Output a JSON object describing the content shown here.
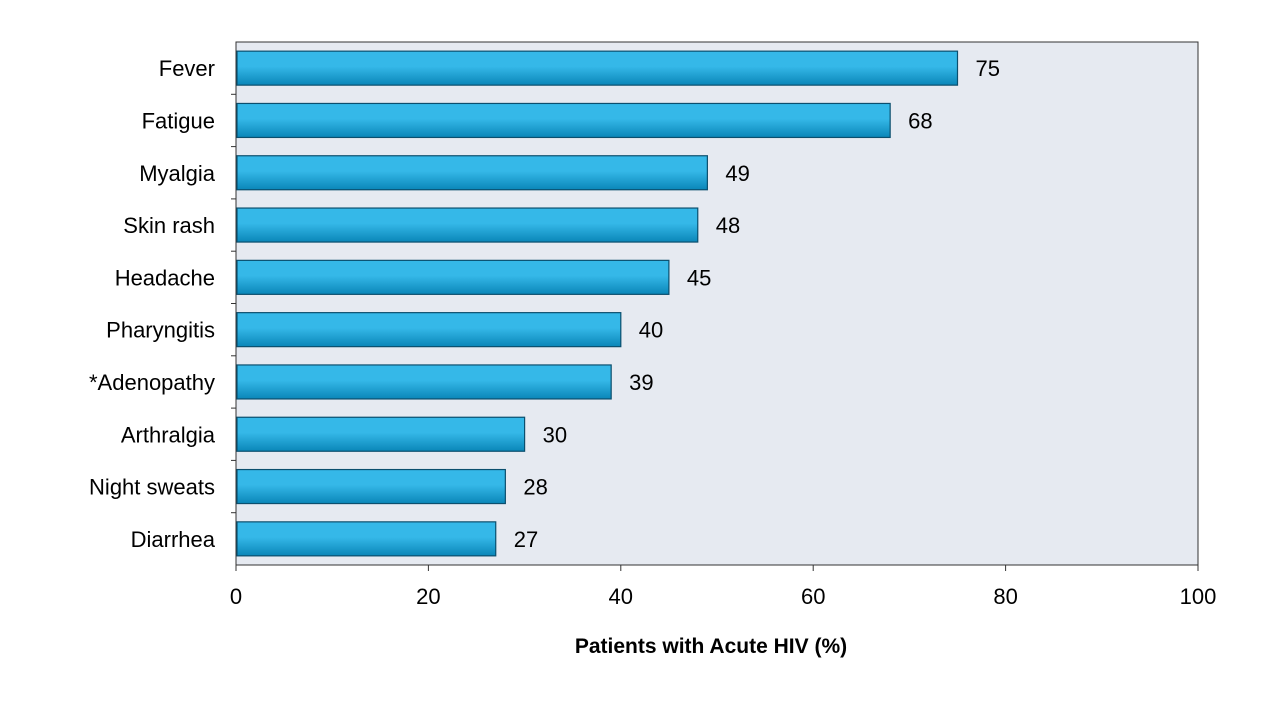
{
  "chart_data": {
    "type": "bar",
    "orientation": "horizontal",
    "categories": [
      "Fever",
      "Fatigue",
      "Myalgia",
      "Skin rash",
      "Headache",
      "Pharyngitis",
      "*Adenopathy",
      "Arthralgia",
      "Night sweats",
      "Diarrhea"
    ],
    "values": [
      75,
      68,
      49,
      48,
      45,
      40,
      39,
      30,
      28,
      27
    ],
    "title": "",
    "xlabel": "Patients with Acute HIV (%)",
    "ylabel": "",
    "xlim": [
      0,
      100
    ],
    "xticks": [
      "0",
      "20",
      "40",
      "60",
      "80",
      "100"
    ],
    "grid": false,
    "legend": "none",
    "colors": {
      "bar_top": "#35b8e8",
      "bar_bottom": "#0a86b8",
      "bar_edge": "#0b4f6e",
      "plot_background": "#e6eaf1",
      "axis": "#333333"
    }
  }
}
